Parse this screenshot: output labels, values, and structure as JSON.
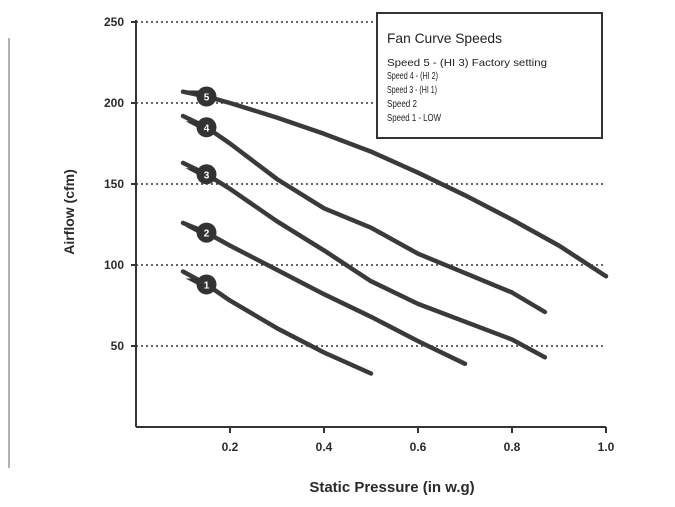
{
  "chart_data": {
    "type": "line",
    "xlabel": "Static Pressure (in w.g)",
    "ylabel": "Airflow (cfm)",
    "xlim": [
      0,
      1.0
    ],
    "ylim": [
      0,
      250
    ],
    "xticks": [
      {
        "value": 0.2,
        "label": "0.2"
      },
      {
        "value": 0.4,
        "label": "0.4"
      },
      {
        "value": 0.6,
        "label": "0.6"
      },
      {
        "value": 0.8,
        "label": "0.8"
      },
      {
        "value": 1.0,
        "label": "1.0"
      }
    ],
    "yticks": [
      {
        "value": 50,
        "label": "50"
      },
      {
        "value": 100,
        "label": "100"
      },
      {
        "value": 150,
        "label": "150"
      },
      {
        "value": 200,
        "label": "200"
      },
      {
        "value": 250,
        "label": "250"
      }
    ],
    "grid": "horizontal-dotted",
    "legend": {
      "title": "Fan Curve Speeds",
      "placement": "top-right",
      "entries": [
        "Speed 5 - (HI 3) Factory setting",
        "Speed 4 - (HI 2)",
        "Speed 3 - (HI 1)",
        "Speed 2",
        "Speed 1 - LOW"
      ]
    },
    "colors": {
      "line": "#3a3a3a",
      "grid": "#333333",
      "axis": "#333333",
      "marker": "#333333",
      "marker_text": "#ffffff"
    },
    "series": [
      {
        "marker": "5",
        "x": [
          0.1,
          0.15,
          0.2,
          0.3,
          0.4,
          0.5,
          0.6,
          0.7,
          0.8,
          0.9,
          1.0
        ],
        "y": [
          207,
          204,
          200,
          191,
          181,
          170,
          157,
          143,
          128,
          112,
          93
        ]
      },
      {
        "marker": "4",
        "x": [
          0.1,
          0.15,
          0.2,
          0.3,
          0.4,
          0.5,
          0.6,
          0.7,
          0.8,
          0.87
        ],
        "y": [
          192,
          185,
          175,
          153,
          135,
          123,
          107,
          95,
          83,
          71
        ]
      },
      {
        "marker": "3",
        "x": [
          0.1,
          0.15,
          0.2,
          0.3,
          0.4,
          0.5,
          0.6,
          0.7,
          0.8,
          0.87
        ],
        "y": [
          163,
          156,
          147,
          127,
          109,
          90,
          76,
          65,
          54,
          43
        ]
      },
      {
        "marker": "2",
        "x": [
          0.1,
          0.15,
          0.2,
          0.3,
          0.4,
          0.5,
          0.6,
          0.7
        ],
        "y": [
          126,
          120,
          112,
          97,
          82,
          68,
          53,
          39
        ]
      },
      {
        "marker": "1",
        "x": [
          0.1,
          0.15,
          0.2,
          0.3,
          0.4,
          0.5
        ],
        "y": [
          96,
          88,
          78,
          61,
          46,
          33
        ]
      }
    ]
  }
}
